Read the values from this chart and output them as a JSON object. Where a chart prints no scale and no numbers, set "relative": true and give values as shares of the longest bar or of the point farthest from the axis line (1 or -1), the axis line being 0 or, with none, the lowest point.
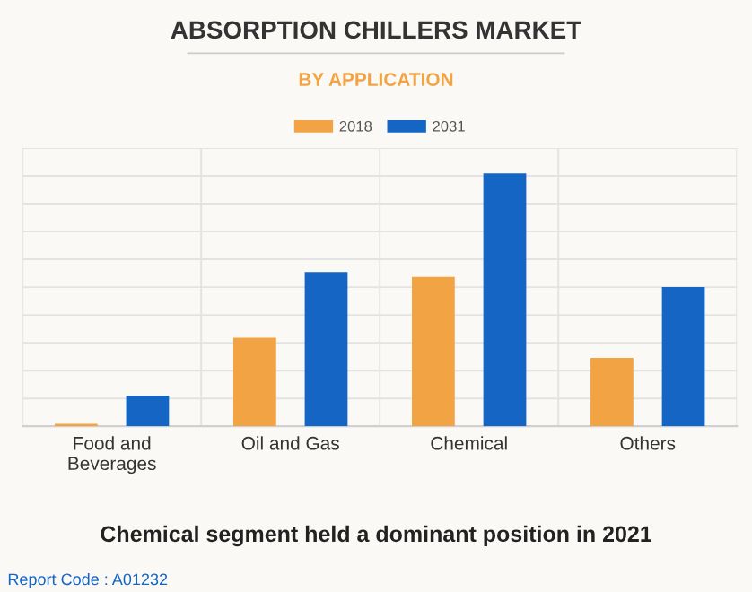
{
  "chart_data": {
    "type": "bar",
    "title": "ABSORPTION CHILLERS MARKET",
    "subtitle": "BY APPLICATION",
    "categories": [
      "Food and\nBeverages",
      "Oil and Gas",
      "Chemical",
      "Others"
    ],
    "series": [
      {
        "name": "2018",
        "color": "#f2a444",
        "values": [
          0.01,
          0.35,
          0.59,
          0.27
        ]
      },
      {
        "name": "2031",
        "color": "#1565c4",
        "values": [
          0.12,
          0.61,
          1,
          0.55
        ]
      }
    ],
    "relative": true,
    "grid": true,
    "legend": "top",
    "annotations": [
      "Chemical segment held a dominant position in 2021",
      "Report Code : A01232"
    ]
  }
}
